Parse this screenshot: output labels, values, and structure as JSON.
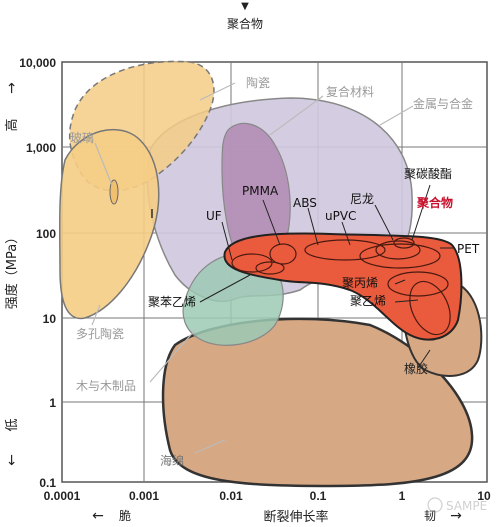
{
  "header": {
    "arrow": "▼",
    "title": "聚合物"
  },
  "axes": {
    "y_label": "强度（MPa）",
    "y_high": "高",
    "y_low": "低",
    "y_up_arrow": "→",
    "y_down_arrow": "←",
    "y_ticks": [
      "10,000",
      "1,000",
      "100",
      "10",
      "1",
      "0.1"
    ],
    "x_ticks": [
      "0.0001",
      "0.001",
      "0.01",
      "0.1",
      "1",
      "10"
    ],
    "x_label": "断裂伸长率",
    "x_left": "脆",
    "x_right": "韧",
    "x_left_arrow": "←",
    "x_right_arrow": "→"
  },
  "regions": {
    "ceramics": "陶瓷",
    "composites": "复合材料",
    "metals": "金属与合金",
    "glass": "玻璃",
    "porous_ceramics": "多孔陶瓷",
    "wood": "木与木制品",
    "foam": "海绵",
    "rubber": "橡胶",
    "polymers": "聚合物"
  },
  "materials": {
    "pmma": "PMMA",
    "abs": "ABS",
    "nylon": "尼龙",
    "pc": "聚碳酸酯",
    "uf": "UF",
    "upvc": "uPVC",
    "pet": "PET",
    "ps": "聚苯乙烯",
    "pp": "聚丙烯",
    "pe": "聚乙烯"
  },
  "watermark": "SAMPE",
  "colors": {
    "ceramic_fill": "#f5cd85",
    "metal_fill": "#c9c2d8",
    "composite_fill": "#b38db5",
    "polymer_fill": "#ea5a3c",
    "foam_fill": "#d7a884",
    "green_fill": "#9cc9b4",
    "polymer_label": "#c8102e"
  }
}
